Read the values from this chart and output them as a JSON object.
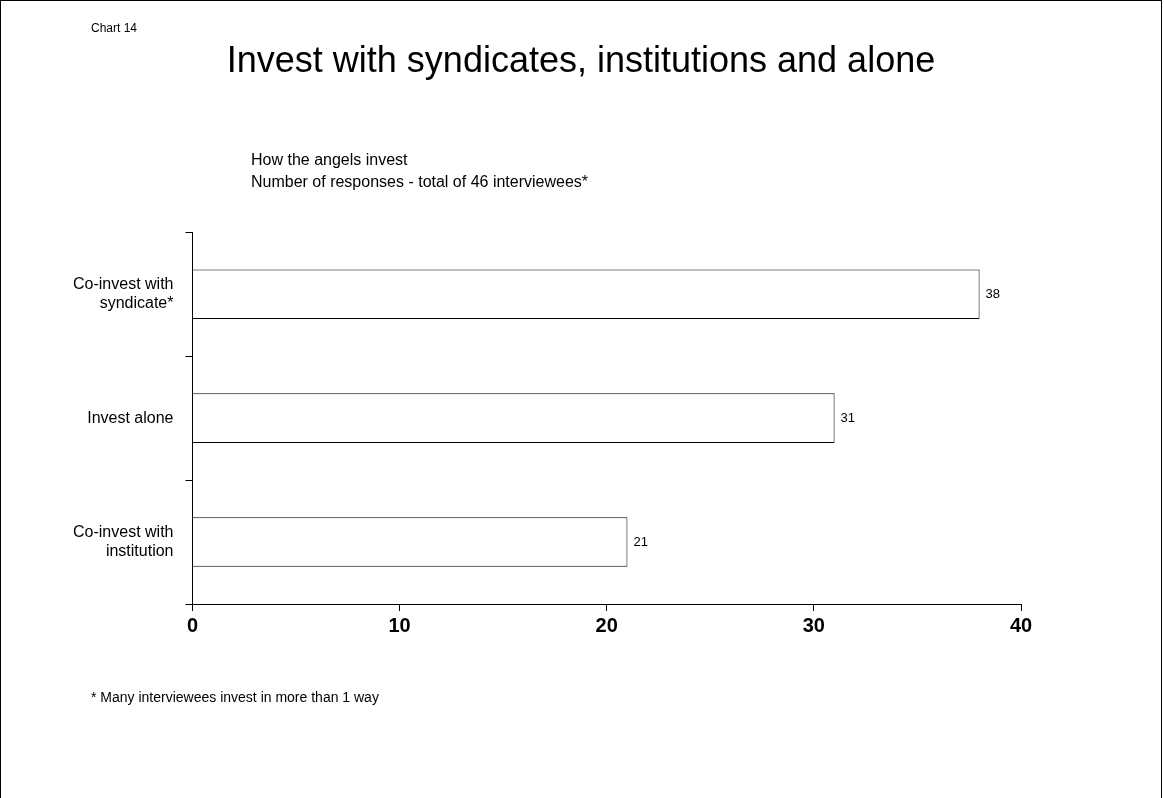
{
  "chart_data": {
    "type": "bar",
    "orientation": "horizontal",
    "title": "Invest with syndicates, institutions and alone",
    "subtitle": "How the angels invest\nNumber of responses - total of 46 interviewees*",
    "categories": [
      "Co-invest with syndicate*",
      "Invest alone",
      "Co-invest with institution"
    ],
    "values": [
      38,
      31,
      21
    ],
    "color": "#ffffff",
    "xlim": [
      0,
      40
    ],
    "xticks": [
      0,
      10,
      20,
      30,
      40
    ],
    "grid": false,
    "legend": false,
    "data_labels": true,
    "annotations": [
      "Chart 14",
      "* Many interviewees invest in more than 1 way"
    ]
  }
}
